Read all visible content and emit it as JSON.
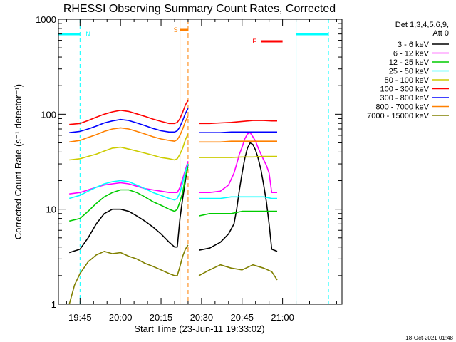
{
  "chart_data": {
    "type": "line",
    "title": "RHESSI Observing Summary Count Rates, Corrected",
    "xlabel": "Start Time (23-Jun-11 19:33:02)",
    "ylabel": "Corrected Count Rate (s⁻¹ detector⁻¹)",
    "yscale": "log",
    "ylim": [
      1,
      1000
    ],
    "xlim_minutes": [
      -8,
      97
    ],
    "x_ticks": [
      {
        "label": "19:45",
        "minute": 0
      },
      {
        "label": "20:00",
        "minute": 15
      },
      {
        "label": "20:15",
        "minute": 30
      },
      {
        "label": "20:30",
        "minute": 45
      },
      {
        "label": "20:45",
        "minute": 60
      },
      {
        "label": "21:00",
        "minute": 75
      }
    ],
    "y_ticks": [
      {
        "label": "1",
        "value": 1
      },
      {
        "label": "10",
        "value": 10
      },
      {
        "label": "100",
        "value": 100
      },
      {
        "label": "1000",
        "value": 1000
      }
    ],
    "legend_header": [
      "Det 1,3,4,5,6,9,",
      "Att 0"
    ],
    "legend_position": "right",
    "timestamp": "18-Oct-2021 01:48",
    "annotations": [
      {
        "label": "N",
        "color": "#00ffff",
        "type": "night",
        "intervals": [
          [
            -8,
            0
          ],
          [
            80,
            92
          ]
        ]
      },
      {
        "label": "S",
        "color": "#ff8000",
        "type": "saa",
        "start": 37,
        "end": 40
      },
      {
        "label": "F",
        "color": "#ff0000",
        "type": "flare",
        "start": 67,
        "end": 75
      }
    ],
    "series": [
      {
        "name": "3 - 6 keV",
        "color": "#000000",
        "points": [
          [
            -4,
            3.5
          ],
          [
            0,
            3.8
          ],
          [
            3,
            5
          ],
          [
            6,
            7
          ],
          [
            9,
            9
          ],
          [
            12,
            10
          ],
          [
            15,
            10
          ],
          [
            18,
            9.5
          ],
          [
            21,
            8.5
          ],
          [
            24,
            7.5
          ],
          [
            27,
            6.5
          ],
          [
            30,
            5.5
          ],
          [
            33,
            4.5
          ],
          [
            35,
            4
          ],
          [
            36,
            4
          ],
          [
            37,
            8
          ],
          [
            38,
            13
          ],
          [
            39,
            20
          ],
          [
            40,
            30
          ],
          [
            null,
            null
          ],
          [
            44,
            3.7
          ],
          [
            48,
            3.9
          ],
          [
            52,
            4.5
          ],
          [
            55,
            5.5
          ],
          [
            57,
            7
          ],
          [
            58,
            10
          ],
          [
            59,
            16
          ],
          [
            60,
            24
          ],
          [
            61,
            34
          ],
          [
            62,
            44
          ],
          [
            63,
            50
          ],
          [
            64,
            48
          ],
          [
            65,
            42
          ],
          [
            66,
            34
          ],
          [
            67,
            26
          ],
          [
            68,
            18
          ],
          [
            69,
            12
          ],
          [
            70,
            7
          ],
          [
            71,
            3.8
          ],
          [
            73,
            3.6
          ]
        ]
      },
      {
        "name": "6 - 12 keV",
        "color": "#ff00ff",
        "points": [
          [
            -4,
            14.5
          ],
          [
            0,
            15
          ],
          [
            3,
            16
          ],
          [
            6,
            17
          ],
          [
            9,
            18
          ],
          [
            12,
            18.5
          ],
          [
            15,
            19
          ],
          [
            18,
            18.5
          ],
          [
            21,
            17.5
          ],
          [
            24,
            16.5
          ],
          [
            27,
            16
          ],
          [
            30,
            15.5
          ],
          [
            33,
            15
          ],
          [
            35,
            15
          ],
          [
            36,
            15
          ],
          [
            37,
            17
          ],
          [
            38,
            21
          ],
          [
            39,
            26
          ],
          [
            40,
            32
          ],
          [
            null,
            null
          ],
          [
            44,
            15
          ],
          [
            48,
            15
          ],
          [
            52,
            15.5
          ],
          [
            55,
            18
          ],
          [
            57,
            24
          ],
          [
            58,
            30
          ],
          [
            59,
            38
          ],
          [
            60,
            45
          ],
          [
            61,
            55
          ],
          [
            62,
            62
          ],
          [
            63,
            64
          ],
          [
            64,
            58
          ],
          [
            65,
            52
          ],
          [
            66,
            44
          ],
          [
            67,
            38
          ],
          [
            68,
            33
          ],
          [
            69,
            29
          ],
          [
            70,
            24
          ],
          [
            71,
            15
          ],
          [
            73,
            15
          ]
        ]
      },
      {
        "name": "12 - 25 keV",
        "color": "#00cc00",
        "points": [
          [
            -4,
            7.5
          ],
          [
            0,
            8
          ],
          [
            3,
            9.5
          ],
          [
            6,
            11.5
          ],
          [
            9,
            13.5
          ],
          [
            12,
            15
          ],
          [
            15,
            16
          ],
          [
            18,
            16
          ],
          [
            21,
            15
          ],
          [
            24,
            13.5
          ],
          [
            27,
            12
          ],
          [
            30,
            11
          ],
          [
            33,
            10
          ],
          [
            35,
            9.5
          ],
          [
            36,
            10
          ],
          [
            37,
            12
          ],
          [
            38,
            15
          ],
          [
            39,
            22
          ],
          [
            40,
            28
          ],
          [
            null,
            null
          ],
          [
            44,
            8.5
          ],
          [
            48,
            9
          ],
          [
            52,
            9
          ],
          [
            56,
            9
          ],
          [
            60,
            9.5
          ],
          [
            64,
            9.5
          ],
          [
            68,
            9.5
          ],
          [
            71,
            9.5
          ],
          [
            73,
            9.5
          ]
        ]
      },
      {
        "name": "25 - 50 keV",
        "color": "#00ffff",
        "points": [
          [
            -4,
            13
          ],
          [
            0,
            14
          ],
          [
            3,
            15.5
          ],
          [
            6,
            17
          ],
          [
            9,
            18.5
          ],
          [
            12,
            19.5
          ],
          [
            15,
            20
          ],
          [
            18,
            19.5
          ],
          [
            21,
            18
          ],
          [
            24,
            16.5
          ],
          [
            27,
            15
          ],
          [
            30,
            14
          ],
          [
            33,
            13
          ],
          [
            35,
            12.5
          ],
          [
            36,
            13
          ],
          [
            37,
            15
          ],
          [
            38,
            19
          ],
          [
            39,
            25
          ],
          [
            40,
            30
          ],
          [
            null,
            null
          ],
          [
            44,
            13
          ],
          [
            48,
            13
          ],
          [
            52,
            13
          ],
          [
            56,
            13.5
          ],
          [
            60,
            13.5
          ],
          [
            64,
            13.5
          ],
          [
            68,
            13.5
          ],
          [
            71,
            13
          ],
          [
            73,
            13
          ]
        ]
      },
      {
        "name": "50 - 100 keV",
        "color": "#cccc00",
        "points": [
          [
            -4,
            33
          ],
          [
            0,
            34
          ],
          [
            3,
            36
          ],
          [
            6,
            38
          ],
          [
            9,
            41
          ],
          [
            12,
            44
          ],
          [
            15,
            45
          ],
          [
            18,
            43
          ],
          [
            21,
            41
          ],
          [
            24,
            39
          ],
          [
            27,
            37
          ],
          [
            30,
            35
          ],
          [
            33,
            34
          ],
          [
            35,
            33
          ],
          [
            36,
            34
          ],
          [
            37,
            38
          ],
          [
            38,
            44
          ],
          [
            39,
            54
          ],
          [
            40,
            62
          ],
          [
            null,
            null
          ],
          [
            44,
            35
          ],
          [
            48,
            35
          ],
          [
            52,
            35
          ],
          [
            56,
            35
          ],
          [
            60,
            35.5
          ],
          [
            64,
            35.5
          ],
          [
            68,
            36
          ],
          [
            71,
            36
          ],
          [
            73,
            36
          ]
        ]
      },
      {
        "name": "100 - 300 keV",
        "color": "#ff0000",
        "points": [
          [
            -4,
            78
          ],
          [
            0,
            80
          ],
          [
            3,
            86
          ],
          [
            6,
            93
          ],
          [
            9,
            100
          ],
          [
            12,
            106
          ],
          [
            15,
            110
          ],
          [
            18,
            107
          ],
          [
            21,
            101
          ],
          [
            24,
            95
          ],
          [
            27,
            89
          ],
          [
            30,
            84
          ],
          [
            33,
            80
          ],
          [
            35,
            80
          ],
          [
            36,
            82
          ],
          [
            37,
            90
          ],
          [
            38,
            105
          ],
          [
            39,
            125
          ],
          [
            40,
            140
          ],
          [
            null,
            null
          ],
          [
            44,
            80
          ],
          [
            48,
            80
          ],
          [
            52,
            81
          ],
          [
            56,
            82
          ],
          [
            60,
            84
          ],
          [
            64,
            86
          ],
          [
            68,
            86
          ],
          [
            71,
            85
          ],
          [
            73,
            85
          ]
        ]
      },
      {
        "name": "300 - 800 keV",
        "color": "#0000ff",
        "points": [
          [
            -4,
            64
          ],
          [
            0,
            66
          ],
          [
            3,
            70
          ],
          [
            6,
            75
          ],
          [
            9,
            81
          ],
          [
            12,
            85
          ],
          [
            15,
            88
          ],
          [
            18,
            86
          ],
          [
            21,
            81
          ],
          [
            24,
            76
          ],
          [
            27,
            71
          ],
          [
            30,
            67
          ],
          [
            33,
            65
          ],
          [
            35,
            65
          ],
          [
            36,
            67
          ],
          [
            37,
            74
          ],
          [
            38,
            86
          ],
          [
            39,
            102
          ],
          [
            40,
            115
          ],
          [
            null,
            null
          ],
          [
            44,
            64
          ],
          [
            48,
            64
          ],
          [
            52,
            64
          ],
          [
            56,
            65
          ],
          [
            60,
            65
          ],
          [
            64,
            65
          ],
          [
            68,
            65
          ],
          [
            71,
            65
          ],
          [
            73,
            65
          ]
        ]
      },
      {
        "name": "800 - 7000 keV",
        "color": "#ff8000",
        "points": [
          [
            -4,
            51
          ],
          [
            0,
            53
          ],
          [
            3,
            57
          ],
          [
            6,
            61
          ],
          [
            9,
            66
          ],
          [
            12,
            70
          ],
          [
            15,
            72
          ],
          [
            18,
            70
          ],
          [
            21,
            66
          ],
          [
            24,
            62
          ],
          [
            27,
            58
          ],
          [
            30,
            55
          ],
          [
            33,
            53
          ],
          [
            35,
            52
          ],
          [
            36,
            54
          ],
          [
            37,
            60
          ],
          [
            38,
            70
          ],
          [
            39,
            84
          ],
          [
            40,
            95
          ],
          [
            null,
            null
          ],
          [
            44,
            51
          ],
          [
            48,
            51
          ],
          [
            52,
            51
          ],
          [
            56,
            52
          ],
          [
            60,
            52
          ],
          [
            64,
            52
          ],
          [
            68,
            52
          ],
          [
            71,
            52
          ],
          [
            73,
            52
          ]
        ]
      },
      {
        "name": "7000 - 15000 keV",
        "color": "#808000",
        "points": [
          [
            -4,
            1
          ],
          [
            -2,
            1.6
          ],
          [
            0,
            2.1
          ],
          [
            3,
            2.8
          ],
          [
            6,
            3.3
          ],
          [
            9,
            3.6
          ],
          [
            12,
            3.4
          ],
          [
            15,
            3.5
          ],
          [
            18,
            3.2
          ],
          [
            21,
            3
          ],
          [
            24,
            2.7
          ],
          [
            27,
            2.5
          ],
          [
            30,
            2.3
          ],
          [
            33,
            2.1
          ],
          [
            35,
            2
          ],
          [
            36,
            2
          ],
          [
            37,
            2.5
          ],
          [
            38,
            3.2
          ],
          [
            39,
            3.8
          ],
          [
            40,
            4.2
          ],
          [
            null,
            null
          ],
          [
            44,
            2
          ],
          [
            48,
            2.3
          ],
          [
            52,
            2.6
          ],
          [
            56,
            2.4
          ],
          [
            60,
            2.3
          ],
          [
            64,
            2.6
          ],
          [
            68,
            2.4
          ],
          [
            71,
            2.2
          ],
          [
            73,
            1.8
          ]
        ]
      }
    ]
  }
}
